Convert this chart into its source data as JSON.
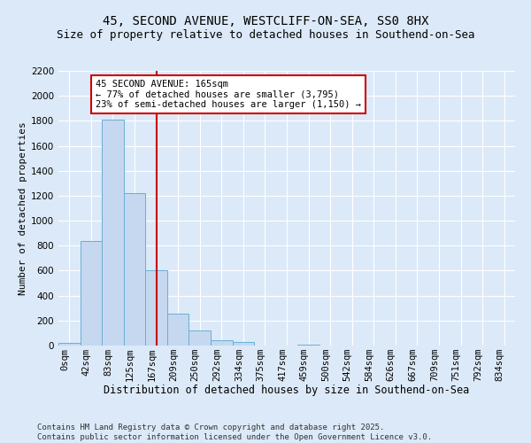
{
  "title1": "45, SECOND AVENUE, WESTCLIFF-ON-SEA, SS0 8HX",
  "title2": "Size of property relative to detached houses in Southend-on-Sea",
  "xlabel": "Distribution of detached houses by size in Southend-on-Sea",
  "ylabel": "Number of detached properties",
  "categories": [
    "0sqm",
    "42sqm",
    "83sqm",
    "125sqm",
    "167sqm",
    "209sqm",
    "250sqm",
    "292sqm",
    "334sqm",
    "375sqm",
    "417sqm",
    "459sqm",
    "500sqm",
    "542sqm",
    "584sqm",
    "626sqm",
    "667sqm",
    "709sqm",
    "751sqm",
    "792sqm",
    "834sqm"
  ],
  "values": [
    20,
    840,
    1810,
    1220,
    600,
    255,
    120,
    45,
    30,
    0,
    0,
    10,
    0,
    0,
    0,
    0,
    0,
    0,
    0,
    0,
    0
  ],
  "bar_color": "#c5d8f0",
  "bar_edge_color": "#6aaed6",
  "vline_x": 4,
  "vline_color": "#cc0000",
  "annotation_text": "45 SECOND AVENUE: 165sqm\n← 77% of detached houses are smaller (3,795)\n23% of semi-detached houses are larger (1,150) →",
  "annotation_box_color": "#cc0000",
  "annotation_bg": "white",
  "ylim": [
    0,
    2200
  ],
  "yticks": [
    0,
    200,
    400,
    600,
    800,
    1000,
    1200,
    1400,
    1600,
    1800,
    2000,
    2200
  ],
  "footnote": "Contains HM Land Registry data © Crown copyright and database right 2025.\nContains public sector information licensed under the Open Government Licence v3.0.",
  "bg_color": "#dce9f8",
  "plot_bg_color": "#dce9f8",
  "grid_color": "white",
  "title1_fontsize": 10,
  "title2_fontsize": 9,
  "xlabel_fontsize": 8.5,
  "ylabel_fontsize": 8,
  "tick_fontsize": 7.5,
  "annot_fontsize": 7.5,
  "footnote_fontsize": 6.5
}
